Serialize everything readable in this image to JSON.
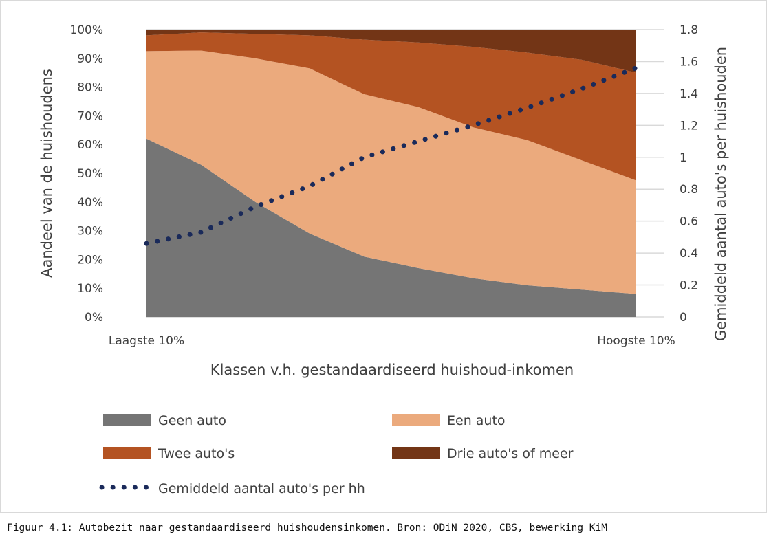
{
  "chart_data": {
    "type": "area",
    "stacked": true,
    "categories": [
      "Laagste 10%",
      "",
      "",
      "",
      "",
      "",
      "",
      "",
      "",
      "Hoogste 10%"
    ],
    "xlabel": "Klassen v.h. gestandaardiseerd huishoud-inkomen",
    "ylabel": "Aandeel van de huishoudens",
    "ylabel_right": "Gemiddeld aantal auto's per huishouden",
    "ylim": [
      0,
      100
    ],
    "ylim_right": [
      0,
      1.8
    ],
    "yticks": [
      "0%",
      "10%",
      "20%",
      "30%",
      "40%",
      "50%",
      "60%",
      "70%",
      "80%",
      "90%",
      "100%"
    ],
    "yticks_right": [
      "0",
      "0.2",
      "0.4",
      "0.6",
      "0.8",
      "1",
      "1.2",
      "1.4",
      "1.6",
      "1.8"
    ],
    "grid": true,
    "legend_placement": "bottom",
    "series": [
      {
        "name": "Geen auto",
        "color": "#757575",
        "values": [
          62,
          53,
          40,
          29,
          21,
          17,
          13.5,
          11,
          9.5,
          8
        ]
      },
      {
        "name": "Een auto",
        "color": "#ebaa7d",
        "values": [
          30.5,
          39.7,
          50,
          57.5,
          56.5,
          56,
          52.5,
          50.5,
          45,
          39.5
        ]
      },
      {
        "name": "Twee auto's",
        "color": "#b45322",
        "values": [
          5.5,
          6.3,
          8.5,
          11.5,
          19,
          22.5,
          28,
          30.5,
          35,
          37.5
        ]
      },
      {
        "name": "Drie auto's of meer",
        "color": "#733516",
        "values": [
          2,
          1,
          1.5,
          2,
          3.5,
          4.5,
          6,
          8,
          10.5,
          15
        ]
      }
    ],
    "line_series": {
      "name": "Gemiddeld aantal auto's per hh",
      "color": "#1a2a5a",
      "axis": "right",
      "style": "dotted",
      "values": [
        0.46,
        0.53,
        0.69,
        0.82,
        1.0,
        1.1,
        1.2,
        1.31,
        1.43,
        1.56
      ]
    }
  },
  "caption": "Figuur 4.1: Autobezit naar gestandaardiseerd huishoudensinkomen. Bron: ODiN 2020, CBS, bewerking KiM"
}
